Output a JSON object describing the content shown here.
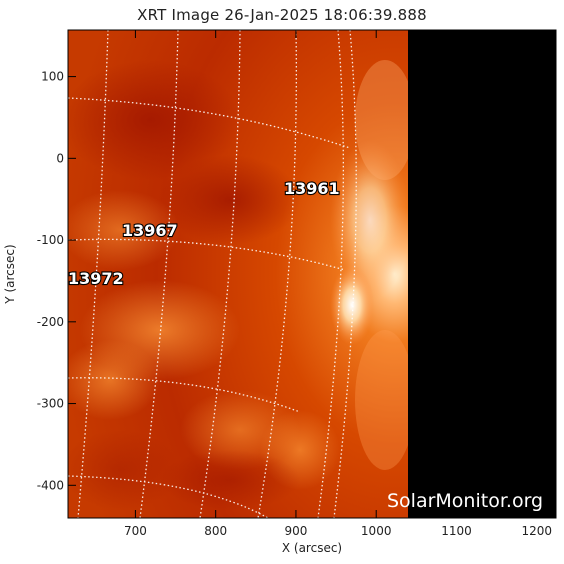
{
  "title": "XRT Image 26-Jan-2025 18:06:39.888",
  "axes": {
    "xlabel": "X (arcsec)",
    "ylabel": "Y (arcsec)",
    "xlim": [
      616,
      1224
    ],
    "ylim": [
      -440,
      157
    ],
    "x_ticks": [
      700,
      800,
      900,
      1000,
      1100,
      1200
    ],
    "y_ticks": [
      100,
      0,
      -100,
      -200,
      -300,
      -400
    ]
  },
  "regions": [
    {
      "id": "13961",
      "label": "13961"
    },
    {
      "id": "13967",
      "label": "13967"
    },
    {
      "id": "13972",
      "label": "13972"
    }
  ],
  "watermark": "SolarMonitor.org",
  "colors": {
    "sun_deep": "#b21a00",
    "sun_mid": "#d84800",
    "limb": "#ffd9a0",
    "space": "#000000"
  }
}
